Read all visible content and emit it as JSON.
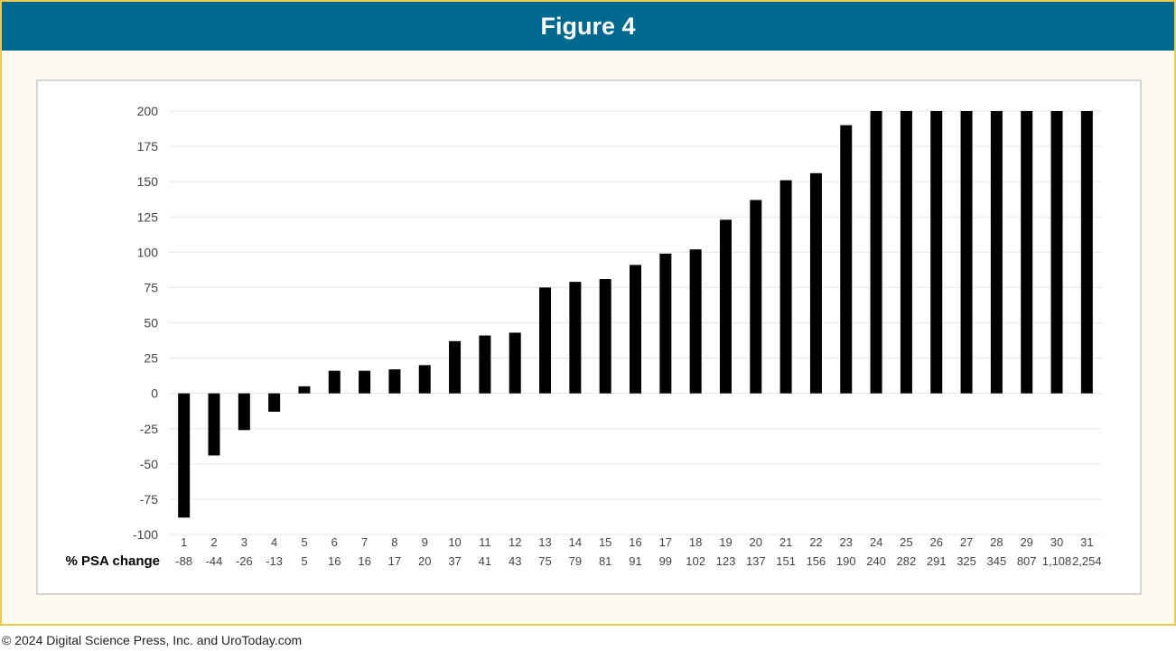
{
  "header": {
    "title": "Figure 4"
  },
  "footer": {
    "copyright": "© 2024 Digital Science Press, Inc. and UroToday.com"
  },
  "chart_data": {
    "type": "bar",
    "categories": [
      "1",
      "2",
      "3",
      "4",
      "5",
      "6",
      "7",
      "8",
      "9",
      "10",
      "11",
      "12",
      "13",
      "14",
      "15",
      "16",
      "17",
      "18",
      "19",
      "20",
      "21",
      "22",
      "23",
      "24",
      "25",
      "26",
      "27",
      "28",
      "29",
      "30",
      "31"
    ],
    "values": [
      -88,
      -44,
      -26,
      -13,
      5,
      16,
      16,
      17,
      20,
      37,
      41,
      43,
      75,
      79,
      81,
      91,
      99,
      102,
      123,
      137,
      151,
      156,
      190,
      240,
      282,
      291,
      325,
      345,
      807,
      1108,
      2254
    ],
    "value_labels": [
      "-88",
      "-44",
      "-26",
      "-13",
      "5",
      "16",
      "16",
      "17",
      "20",
      "37",
      "41",
      "43",
      "75",
      "79",
      "81",
      "91",
      "99",
      "102",
      "123",
      "137",
      "151",
      "156",
      "190",
      "240",
      "282",
      "291",
      "325",
      "345",
      "807",
      "1,108",
      "2,254"
    ],
    "row_label": "% PSA change",
    "ylim": [
      -100,
      200
    ],
    "yticks": [
      200,
      175,
      150,
      125,
      100,
      75,
      50,
      25,
      0,
      -25,
      -50,
      -75,
      -100
    ],
    "grid": true,
    "bar_color": "#000000"
  }
}
